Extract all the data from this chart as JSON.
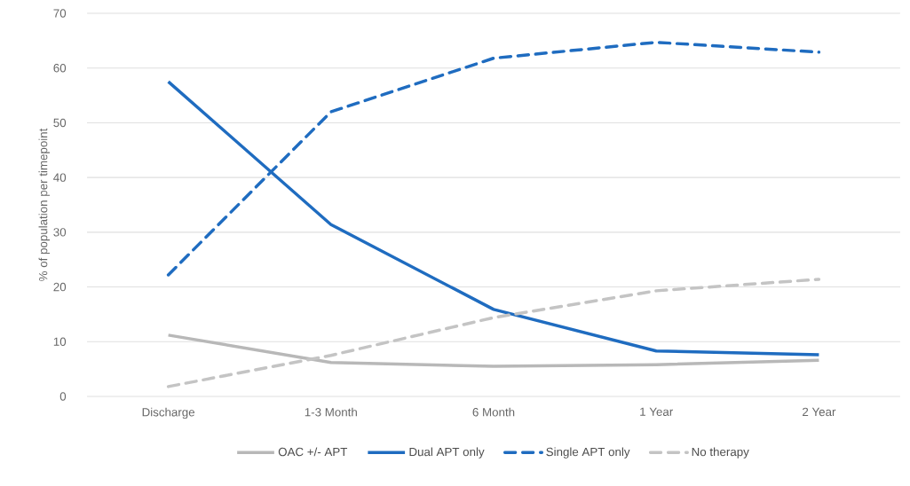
{
  "chart_data": {
    "type": "line",
    "ylabel": "% of population per timepoint",
    "categories": [
      "Discharge",
      "1-3 Month",
      "6 Month",
      "1 Year",
      "2 Year"
    ],
    "series": [
      {
        "name": "OAC +/- APT",
        "color": "#b8b8b8",
        "line_style": "solid",
        "values": [
          11.2,
          6.2,
          5.5,
          5.8,
          6.6
        ]
      },
      {
        "name": "Dual APT only",
        "color": "#1f6cc0",
        "line_style": "solid",
        "values": [
          57.5,
          31.4,
          15.9,
          8.3,
          7.6
        ]
      },
      {
        "name": "Single APT only",
        "color": "#1f6cc0",
        "line_style": "dashed",
        "values": [
          22.2,
          52.0,
          61.8,
          64.7,
          62.9
        ]
      },
      {
        "name": "No therapy",
        "color": "#c4c4c4",
        "line_style": "dashed",
        "values": [
          1.8,
          7.5,
          14.4,
          19.3,
          21.4
        ]
      }
    ],
    "ylim": [
      0,
      70
    ],
    "yticks": [
      0,
      10,
      20,
      30,
      40,
      50,
      60,
      70
    ],
    "grid": "y",
    "legend": "bottom"
  }
}
